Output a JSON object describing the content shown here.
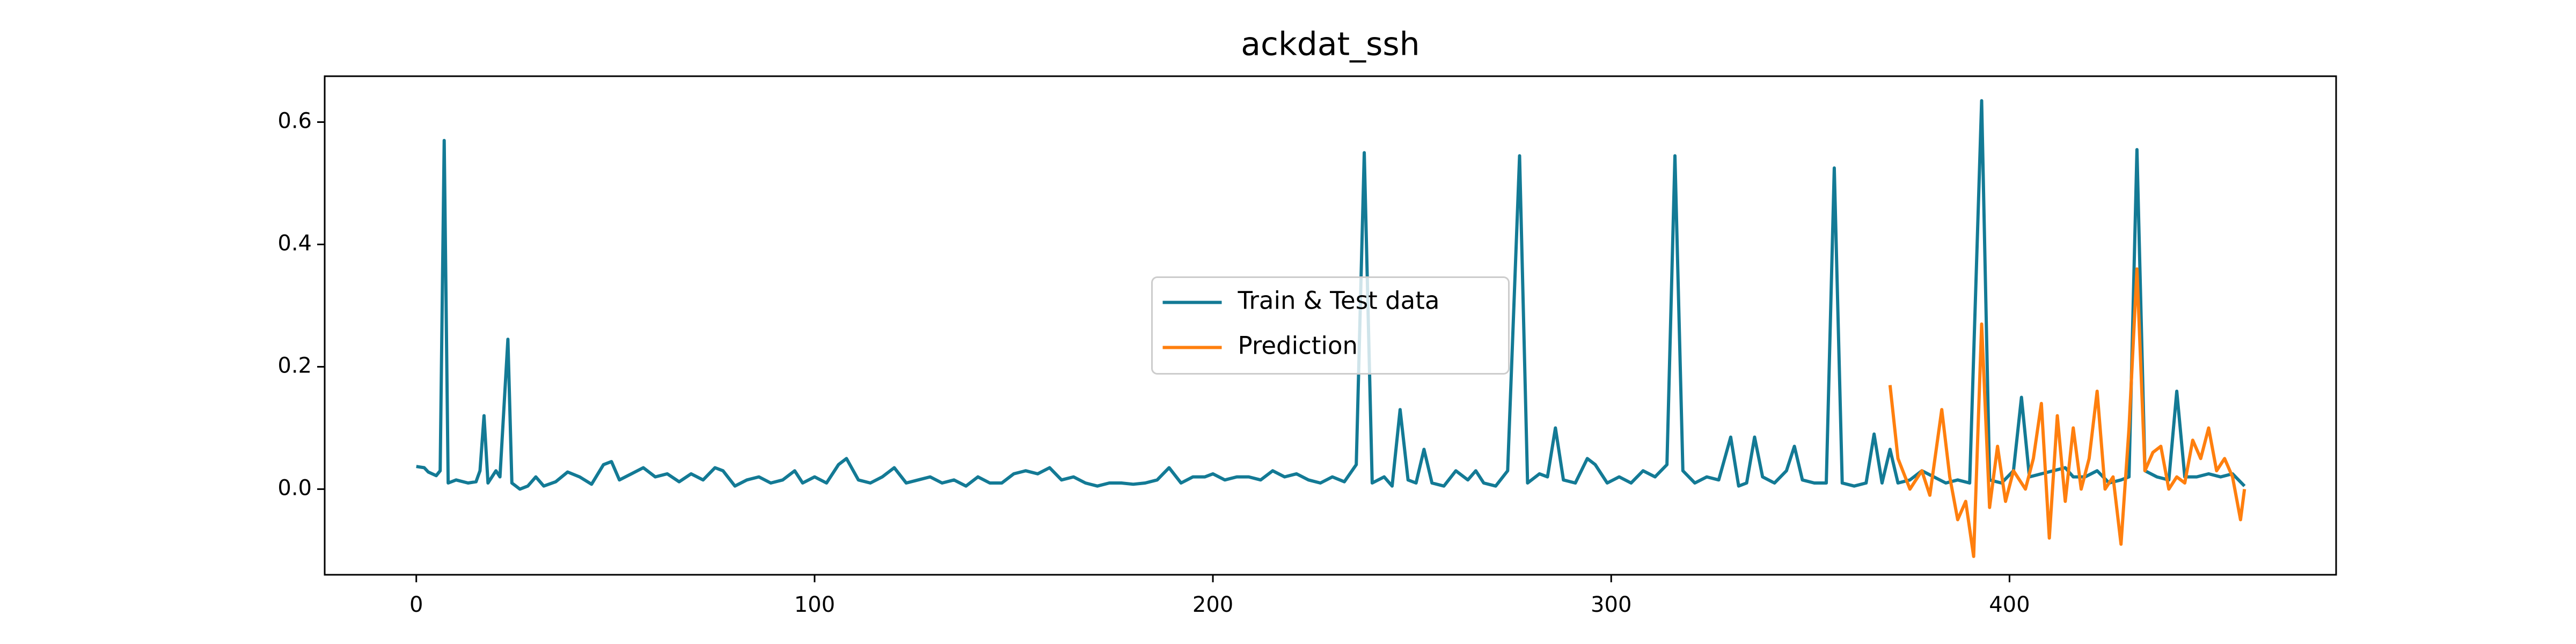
{
  "chart_data": {
    "type": "line",
    "title": "ackdat_ssh",
    "xlim": [
      -23,
      482
    ],
    "ylim": [
      -0.14,
      0.675
    ],
    "xticks": [
      0,
      100,
      200,
      300,
      400
    ],
    "yticks": [
      {
        "value": 0,
        "label": "0.0"
      },
      0.2,
      0.4,
      0.6
    ],
    "legend": "center",
    "series": [
      {
        "name": "Train & Test data",
        "color": "#137a95",
        "x": [
          0,
          2,
          3,
          5,
          6,
          7,
          8,
          10,
          13,
          15,
          16,
          17,
          18,
          20,
          21,
          23,
          24,
          26,
          28,
          30,
          32,
          35,
          38,
          41,
          44,
          47,
          49,
          51,
          54,
          57,
          60,
          63,
          66,
          69,
          72,
          75,
          77,
          80,
          83,
          86,
          89,
          92,
          95,
          97,
          100,
          103,
          106,
          108,
          111,
          114,
          117,
          120,
          123,
          126,
          129,
          132,
          135,
          138,
          141,
          144,
          147,
          150,
          153,
          156,
          159,
          162,
          165,
          168,
          171,
          174,
          177,
          180,
          183,
          186,
          189,
          192,
          195,
          198,
          200,
          203,
          206,
          209,
          212,
          215,
          218,
          221,
          224,
          227,
          230,
          233,
          236,
          238,
          240,
          243,
          245,
          247,
          249,
          251,
          253,
          255,
          258,
          261,
          264,
          266,
          268,
          271,
          274,
          277,
          279,
          282,
          284,
          286,
          288,
          291,
          294,
          296,
          299,
          302,
          305,
          308,
          311,
          314,
          316,
          318,
          321,
          324,
          327,
          330,
          332,
          334,
          336,
          338,
          341,
          344,
          346,
          348,
          351,
          354,
          356,
          358,
          361,
          364,
          366,
          368,
          370,
          372,
          375,
          378,
          381,
          384,
          387,
          390,
          393,
          395,
          398,
          401,
          403,
          405,
          408,
          411,
          414,
          416,
          419,
          422,
          425,
          428,
          430,
          432,
          434,
          437,
          440,
          442,
          444,
          447,
          450,
          453,
          456,
          459
        ],
        "values": [
          0.037,
          0.035,
          0.028,
          0.022,
          0.03,
          0.57,
          0.01,
          0.015,
          0.01,
          0.012,
          0.03,
          0.12,
          0.01,
          0.03,
          0.02,
          0.245,
          0.01,
          0.0,
          0.005,
          0.02,
          0.005,
          0.012,
          0.028,
          0.02,
          0.008,
          0.04,
          0.045,
          0.015,
          0.025,
          0.035,
          0.02,
          0.025,
          0.012,
          0.025,
          0.015,
          0.035,
          0.03,
          0.005,
          0.015,
          0.02,
          0.01,
          0.015,
          0.03,
          0.01,
          0.02,
          0.01,
          0.04,
          0.05,
          0.015,
          0.01,
          0.02,
          0.035,
          0.01,
          0.015,
          0.02,
          0.01,
          0.015,
          0.005,
          0.02,
          0.01,
          0.01,
          0.025,
          0.03,
          0.025,
          0.035,
          0.015,
          0.02,
          0.01,
          0.005,
          0.01,
          0.01,
          0.008,
          0.01,
          0.015,
          0.035,
          0.01,
          0.02,
          0.02,
          0.025,
          0.015,
          0.02,
          0.02,
          0.015,
          0.03,
          0.02,
          0.025,
          0.015,
          0.01,
          0.02,
          0.012,
          0.04,
          0.55,
          0.01,
          0.02,
          0.005,
          0.13,
          0.015,
          0.01,
          0.065,
          0.01,
          0.005,
          0.03,
          0.015,
          0.03,
          0.01,
          0.005,
          0.03,
          0.545,
          0.01,
          0.025,
          0.02,
          0.1,
          0.015,
          0.01,
          0.05,
          0.04,
          0.01,
          0.02,
          0.01,
          0.03,
          0.02,
          0.04,
          0.545,
          0.03,
          0.01,
          0.02,
          0.015,
          0.085,
          0.005,
          0.01,
          0.085,
          0.02,
          0.01,
          0.03,
          0.07,
          0.015,
          0.01,
          0.01,
          0.525,
          0.01,
          0.005,
          0.01,
          0.09,
          0.01,
          0.065,
          0.01,
          0.015,
          0.03,
          0.02,
          0.01,
          0.015,
          0.01,
          0.635,
          0.015,
          0.01,
          0.03,
          0.15,
          0.02,
          0.025,
          0.03,
          0.035,
          0.02,
          0.02,
          0.03,
          0.01,
          0.015,
          0.02,
          0.555,
          0.03,
          0.02,
          0.015,
          0.16,
          0.02,
          0.02,
          0.025,
          0.02,
          0.025,
          0.005
        ]
      },
      {
        "name": "Prediction",
        "color": "#ff7f0e",
        "x": [
          370,
          372,
          375,
          378,
          380,
          383,
          385,
          387,
          389,
          391,
          393,
          395,
          397,
          399,
          401,
          404,
          406,
          408,
          410,
          412,
          414,
          416,
          418,
          420,
          422,
          424,
          426,
          428,
          430,
          432,
          434,
          436,
          438,
          440,
          442,
          444,
          446,
          448,
          450,
          452,
          454,
          456,
          458,
          459
        ],
        "values": [
          0.17,
          0.05,
          0.0,
          0.03,
          -0.01,
          0.13,
          0.02,
          -0.05,
          -0.02,
          -0.11,
          0.27,
          -0.03,
          0.07,
          -0.02,
          0.03,
          0.0,
          0.05,
          0.14,
          -0.08,
          0.12,
          -0.02,
          0.1,
          0.0,
          0.05,
          0.16,
          0.0,
          0.02,
          -0.09,
          0.1,
          0.36,
          0.03,
          0.06,
          0.07,
          0.0,
          0.02,
          0.01,
          0.08,
          0.05,
          0.1,
          0.03,
          0.05,
          0.02,
          -0.05,
          0.0
        ]
      }
    ]
  }
}
